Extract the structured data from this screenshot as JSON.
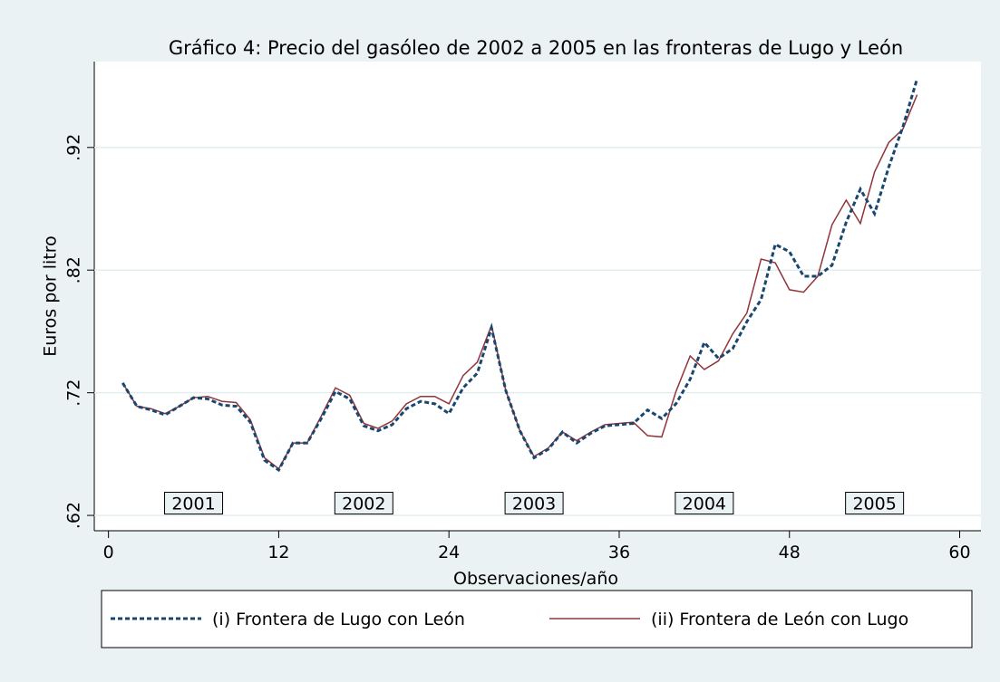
{
  "chart_data": {
    "type": "line",
    "title": "Gráfico 4: Precio del gasóleo de 2002 a 2005 en las fronteras de Lugo y León",
    "xlabel": "Observaciones/año",
    "ylabel": "Euros por litro",
    "x": [
      1,
      2,
      3,
      4,
      5,
      6,
      7,
      8,
      9,
      10,
      11,
      12,
      13,
      14,
      15,
      16,
      17,
      18,
      19,
      20,
      21,
      22,
      23,
      24,
      25,
      26,
      27,
      28,
      29,
      30,
      31,
      32,
      33,
      34,
      35,
      36,
      37,
      38,
      39,
      40,
      41,
      42,
      43,
      44,
      45,
      46,
      47,
      48,
      49,
      50,
      51,
      52,
      53,
      54,
      55,
      56,
      57
    ],
    "series": [
      {
        "name": "(i) Frontera de Lugo con León",
        "color": "#1a476f",
        "dash": true,
        "values": [
          0.728,
          0.709,
          0.706,
          0.702,
          0.709,
          0.716,
          0.715,
          0.71,
          0.709,
          0.696,
          0.665,
          0.657,
          0.679,
          0.679,
          0.699,
          0.721,
          0.715,
          0.693,
          0.689,
          0.694,
          0.707,
          0.713,
          0.711,
          0.703,
          0.724,
          0.736,
          0.773,
          0.722,
          0.689,
          0.667,
          0.674,
          0.688,
          0.679,
          0.687,
          0.693,
          0.694,
          0.695,
          0.706,
          0.699,
          0.711,
          0.731,
          0.761,
          0.748,
          0.756,
          0.778,
          0.796,
          0.841,
          0.835,
          0.815,
          0.815,
          0.824,
          0.859,
          0.886,
          0.866,
          0.904,
          0.937,
          0.976
        ]
      },
      {
        "name": "(ii) Frontera de León con Lugo",
        "color": "#90353b",
        "dash": false,
        "values": [
          0.728,
          0.709,
          0.707,
          0.703,
          0.709,
          0.716,
          0.717,
          0.713,
          0.712,
          0.698,
          0.667,
          0.658,
          0.679,
          0.679,
          0.701,
          0.724,
          0.718,
          0.695,
          0.691,
          0.697,
          0.711,
          0.717,
          0.717,
          0.711,
          0.734,
          0.745,
          0.775,
          0.722,
          0.689,
          0.668,
          0.675,
          0.688,
          0.681,
          0.688,
          0.694,
          0.695,
          0.696,
          0.685,
          0.684,
          0.721,
          0.75,
          0.739,
          0.746,
          0.768,
          0.785,
          0.829,
          0.826,
          0.804,
          0.802,
          0.815,
          0.857,
          0.877,
          0.858,
          0.9,
          0.924,
          0.935,
          0.963
        ]
      }
    ],
    "annotations": [
      {
        "text": "2001",
        "x": 6,
        "y": 0.63
      },
      {
        "text": "2002",
        "x": 18,
        "y": 0.63
      },
      {
        "text": "2003",
        "x": 30,
        "y": 0.63
      },
      {
        "text": "2004",
        "x": 42,
        "y": 0.63
      },
      {
        "text": "2005",
        "x": 54,
        "y": 0.63
      }
    ],
    "xlim": [
      -1,
      61.5
    ],
    "ylim": [
      0.6075,
      0.99
    ],
    "xticks": [
      0,
      12,
      24,
      36,
      48,
      60
    ],
    "yticks": [
      {
        "value": 0.62,
        "label": ".62"
      },
      {
        "value": 0.72,
        "label": ".72"
      },
      {
        "value": 0.82,
        "label": ".82"
      },
      {
        "value": 0.92,
        "label": ".92"
      }
    ],
    "grid": true,
    "legend": "bottom"
  }
}
